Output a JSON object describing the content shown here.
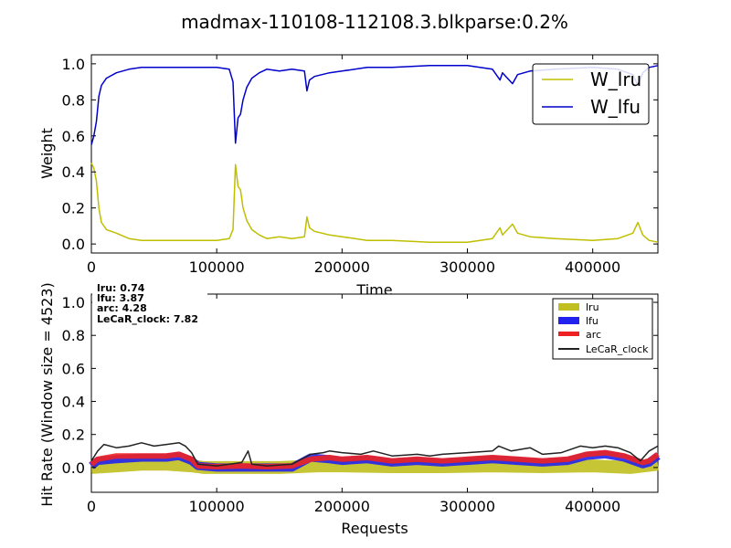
{
  "chart_data": [
    {
      "type": "line",
      "title": "madmax-110108-112108.3.blkparse:0.2%",
      "xlabel": "Time",
      "ylabel": "Weight",
      "xlim": [
        0,
        452000
      ],
      "ylim": [
        -0.05,
        1.05
      ],
      "xticks": [
        "0",
        "100000",
        "200000",
        "300000",
        "400000"
      ],
      "xtick_values": [
        0,
        100000,
        200000,
        300000,
        400000
      ],
      "yticks": [
        "0.0",
        "0.2",
        "0.4",
        "0.6",
        "0.8",
        "1.0"
      ],
      "ytick_values": [
        0,
        0.2,
        0.4,
        0.6,
        0.8,
        1.0
      ],
      "legend_position": "top-right",
      "grid": false,
      "series": [
        {
          "name": "W_lru",
          "color": "#bfbf00",
          "points": [
            [
              0,
              0.45
            ],
            [
              2000,
              0.42
            ],
            [
              4000,
              0.35
            ],
            [
              6000,
              0.2
            ],
            [
              8000,
              0.12
            ],
            [
              12000,
              0.08
            ],
            [
              20000,
              0.06
            ],
            [
              30000,
              0.03
            ],
            [
              40000,
              0.02
            ],
            [
              60000,
              0.02
            ],
            [
              80000,
              0.02
            ],
            [
              100000,
              0.02
            ],
            [
              110000,
              0.03
            ],
            [
              113000,
              0.08
            ],
            [
              115000,
              0.44
            ],
            [
              117000,
              0.32
            ],
            [
              119000,
              0.3
            ],
            [
              121000,
              0.2
            ],
            [
              124000,
              0.13
            ],
            [
              128000,
              0.08
            ],
            [
              134000,
              0.05
            ],
            [
              140000,
              0.03
            ],
            [
              150000,
              0.04
            ],
            [
              160000,
              0.03
            ],
            [
              170000,
              0.04
            ],
            [
              172000,
              0.15
            ],
            [
              174000,
              0.09
            ],
            [
              178000,
              0.07
            ],
            [
              190000,
              0.05
            ],
            [
              200000,
              0.04
            ],
            [
              220000,
              0.02
            ],
            [
              240000,
              0.02
            ],
            [
              270000,
              0.01
            ],
            [
              300000,
              0.01
            ],
            [
              320000,
              0.03
            ],
            [
              326000,
              0.09
            ],
            [
              328000,
              0.05
            ],
            [
              336000,
              0.11
            ],
            [
              340000,
              0.06
            ],
            [
              350000,
              0.04
            ],
            [
              370000,
              0.03
            ],
            [
              400000,
              0.02
            ],
            [
              420000,
              0.03
            ],
            [
              432000,
              0.06
            ],
            [
              436000,
              0.12
            ],
            [
              440000,
              0.05
            ],
            [
              445000,
              0.02
            ],
            [
              452000,
              0.01
            ]
          ]
        },
        {
          "name": "W_lfu",
          "color": "#0000cc",
          "points": [
            [
              0,
              0.55
            ],
            [
              2000,
              0.6
            ],
            [
              4000,
              0.68
            ],
            [
              6000,
              0.82
            ],
            [
              8000,
              0.88
            ],
            [
              12000,
              0.92
            ],
            [
              20000,
              0.95
            ],
            [
              30000,
              0.97
            ],
            [
              40000,
              0.98
            ],
            [
              60000,
              0.98
            ],
            [
              80000,
              0.98
            ],
            [
              100000,
              0.98
            ],
            [
              110000,
              0.97
            ],
            [
              113000,
              0.9
            ],
            [
              115000,
              0.56
            ],
            [
              117000,
              0.7
            ],
            [
              119000,
              0.72
            ],
            [
              121000,
              0.8
            ],
            [
              124000,
              0.87
            ],
            [
              128000,
              0.92
            ],
            [
              134000,
              0.95
            ],
            [
              140000,
              0.97
            ],
            [
              150000,
              0.96
            ],
            [
              160000,
              0.97
            ],
            [
              170000,
              0.96
            ],
            [
              172000,
              0.85
            ],
            [
              174000,
              0.91
            ],
            [
              178000,
              0.93
            ],
            [
              190000,
              0.95
            ],
            [
              200000,
              0.96
            ],
            [
              220000,
              0.98
            ],
            [
              240000,
              0.98
            ],
            [
              270000,
              0.99
            ],
            [
              300000,
              0.99
            ],
            [
              320000,
              0.97
            ],
            [
              326000,
              0.91
            ],
            [
              328000,
              0.95
            ],
            [
              336000,
              0.89
            ],
            [
              340000,
              0.94
            ],
            [
              350000,
              0.96
            ],
            [
              370000,
              0.97
            ],
            [
              400000,
              0.98
            ],
            [
              420000,
              0.97
            ],
            [
              432000,
              0.94
            ],
            [
              436000,
              0.88
            ],
            [
              440000,
              0.95
            ],
            [
              445000,
              0.98
            ],
            [
              452000,
              0.99
            ]
          ]
        }
      ]
    },
    {
      "type": "line",
      "title": "",
      "xlabel": "Requests",
      "ylabel": "Hit Rate (Window size = 4523)",
      "xlim": [
        0,
        452000
      ],
      "ylim": [
        -0.15,
        1.05
      ],
      "xticks": [
        "0",
        "100000",
        "200000",
        "300000",
        "400000"
      ],
      "xtick_values": [
        0,
        100000,
        200000,
        300000,
        400000
      ],
      "yticks": [
        "0.0",
        "0.2",
        "0.4",
        "0.6",
        "0.8",
        "1.0"
      ],
      "ytick_values": [
        0,
        0.2,
        0.4,
        0.6,
        0.8,
        1.0
      ],
      "legend_position": "top-right",
      "grid": false,
      "annotations": [
        "lru:  0.74",
        "lfu:  3.87",
        "arc:  4.28",
        "LeCaR_clock:  7.82"
      ],
      "series": [
        {
          "name": "lru",
          "color": "#bfbf20",
          "style": "band",
          "points": [
            [
              0,
              0.0
            ],
            [
              20000,
              0.01
            ],
            [
              40000,
              0.02
            ],
            [
              60000,
              0.02
            ],
            [
              80000,
              0.01
            ],
            [
              90000,
              0.0
            ],
            [
              120000,
              0.0
            ],
            [
              150000,
              0.0
            ],
            [
              180000,
              0.01
            ],
            [
              200000,
              0.01
            ],
            [
              240000,
              0.005
            ],
            [
              280000,
              0.005
            ],
            [
              320000,
              0.01
            ],
            [
              360000,
              0.005
            ],
            [
              400000,
              0.01
            ],
            [
              430000,
              0.0
            ],
            [
              452000,
              0.02
            ]
          ]
        },
        {
          "name": "lfu",
          "color": "#2222ee",
          "style": "band",
          "points": [
            [
              0,
              0.01
            ],
            [
              5000,
              0.04
            ],
            [
              20000,
              0.05
            ],
            [
              40000,
              0.06
            ],
            [
              60000,
              0.06
            ],
            [
              70000,
              0.07
            ],
            [
              80000,
              0.04
            ],
            [
              85000,
              0.01
            ],
            [
              100000,
              0.0
            ],
            [
              120000,
              0.0
            ],
            [
              140000,
              0.0
            ],
            [
              160000,
              0.0
            ],
            [
              175000,
              0.06
            ],
            [
              190000,
              0.05
            ],
            [
              200000,
              0.04
            ],
            [
              220000,
              0.05
            ],
            [
              240000,
              0.03
            ],
            [
              260000,
              0.04
            ],
            [
              280000,
              0.03
            ],
            [
              300000,
              0.04
            ],
            [
              320000,
              0.05
            ],
            [
              340000,
              0.04
            ],
            [
              360000,
              0.03
            ],
            [
              380000,
              0.04
            ],
            [
              395000,
              0.07
            ],
            [
              410000,
              0.08
            ],
            [
              425000,
              0.06
            ],
            [
              440000,
              0.02
            ],
            [
              445000,
              0.03
            ],
            [
              452000,
              0.07
            ]
          ]
        },
        {
          "name": "arc",
          "color": "#ee2222",
          "style": "band",
          "points": [
            [
              0,
              0.02
            ],
            [
              5000,
              0.05
            ],
            [
              20000,
              0.07
            ],
            [
              40000,
              0.07
            ],
            [
              60000,
              0.07
            ],
            [
              70000,
              0.08
            ],
            [
              80000,
              0.05
            ],
            [
              85000,
              0.01
            ],
            [
              100000,
              0.005
            ],
            [
              120000,
              0.01
            ],
            [
              140000,
              0.005
            ],
            [
              160000,
              0.01
            ],
            [
              175000,
              0.05
            ],
            [
              190000,
              0.06
            ],
            [
              200000,
              0.05
            ],
            [
              220000,
              0.06
            ],
            [
              240000,
              0.04
            ],
            [
              260000,
              0.05
            ],
            [
              280000,
              0.04
            ],
            [
              300000,
              0.05
            ],
            [
              320000,
              0.06
            ],
            [
              340000,
              0.05
            ],
            [
              360000,
              0.04
            ],
            [
              380000,
              0.05
            ],
            [
              395000,
              0.08
            ],
            [
              410000,
              0.09
            ],
            [
              425000,
              0.07
            ],
            [
              440000,
              0.03
            ],
            [
              445000,
              0.04
            ],
            [
              452000,
              0.08
            ]
          ]
        },
        {
          "name": "LeCaR_clock",
          "color": "#222222",
          "style": "line",
          "points": [
            [
              0,
              0.04
            ],
            [
              5000,
              0.1
            ],
            [
              10000,
              0.14
            ],
            [
              20000,
              0.12
            ],
            [
              30000,
              0.13
            ],
            [
              40000,
              0.15
            ],
            [
              50000,
              0.13
            ],
            [
              60000,
              0.14
            ],
            [
              70000,
              0.15
            ],
            [
              75000,
              0.13
            ],
            [
              80000,
              0.09
            ],
            [
              85000,
              0.02
            ],
            [
              100000,
              0.01
            ],
            [
              110000,
              0.02
            ],
            [
              120000,
              0.03
            ],
            [
              125000,
              0.1
            ],
            [
              128000,
              0.02
            ],
            [
              140000,
              0.01
            ],
            [
              160000,
              0.02
            ],
            [
              175000,
              0.08
            ],
            [
              185000,
              0.09
            ],
            [
              190000,
              0.1
            ],
            [
              200000,
              0.09
            ],
            [
              215000,
              0.08
            ],
            [
              225000,
              0.1
            ],
            [
              240000,
              0.07
            ],
            [
              260000,
              0.08
            ],
            [
              270000,
              0.07
            ],
            [
              280000,
              0.08
            ],
            [
              300000,
              0.09
            ],
            [
              320000,
              0.1
            ],
            [
              325000,
              0.13
            ],
            [
              335000,
              0.1
            ],
            [
              350000,
              0.12
            ],
            [
              360000,
              0.08
            ],
            [
              375000,
              0.09
            ],
            [
              390000,
              0.13
            ],
            [
              400000,
              0.12
            ],
            [
              410000,
              0.13
            ],
            [
              420000,
              0.12
            ],
            [
              430000,
              0.09
            ],
            [
              438000,
              0.04
            ],
            [
              445000,
              0.1
            ],
            [
              452000,
              0.13
            ]
          ]
        }
      ]
    }
  ]
}
